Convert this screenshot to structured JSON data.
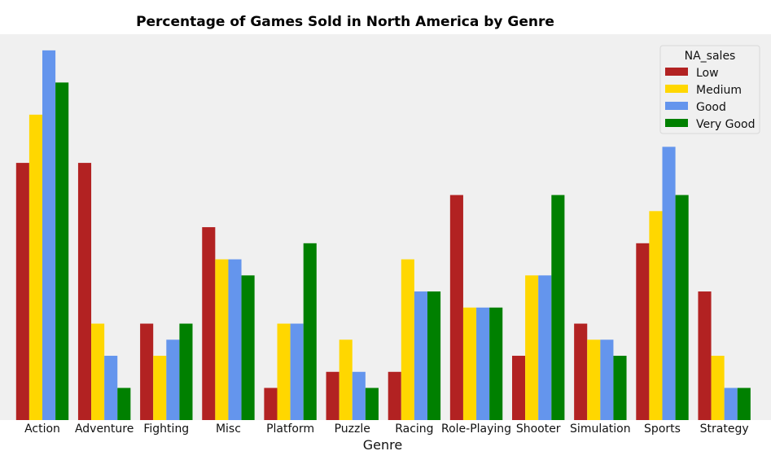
{
  "chart_data": {
    "type": "bar",
    "title": "Percentage of Games Sold in North America by Genre",
    "xlabel": "Genre",
    "ylabel": "",
    "ylim": [
      0,
      23.5
    ],
    "grid": false,
    "legend": {
      "title": "NA_sales",
      "placement": "top-right"
    },
    "categories": [
      "Action",
      "Adventure",
      "Fighting",
      "Misc",
      "Platform",
      "Puzzle",
      "Racing",
      "Role-Playing",
      "Shooter",
      "Simulation",
      "Sports",
      "Strategy"
    ],
    "series": [
      {
        "name": "Low",
        "color": "#b22222",
        "values": [
          16,
          16,
          6,
          12,
          2,
          3,
          3,
          14,
          4,
          6,
          11,
          8
        ]
      },
      {
        "name": "Medium",
        "color": "#ffd700",
        "values": [
          19,
          6,
          4,
          10,
          6,
          5,
          10,
          7,
          9,
          5,
          13,
          4
        ]
      },
      {
        "name": "Good",
        "color": "#6495ed",
        "values": [
          23,
          4,
          5,
          10,
          6,
          3,
          8,
          7,
          9,
          5,
          17,
          2
        ]
      },
      {
        "name": "Very Good",
        "color": "#008000",
        "values": [
          21,
          2,
          6,
          9,
          11,
          2,
          8,
          7,
          14,
          4,
          14,
          2
        ]
      }
    ]
  },
  "colors": {
    "plot_background": "#f0f0f0",
    "page_background": "#ffffff"
  }
}
